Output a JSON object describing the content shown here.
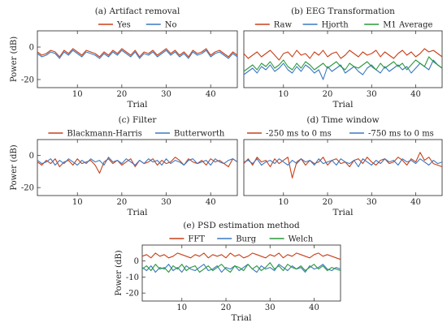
{
  "colors": {
    "red": "#c8401a",
    "blue": "#3a78c2",
    "green": "#2a9a3a"
  },
  "chart_data": [
    {
      "type": "line",
      "title": "(a) Artifact removal",
      "xlabel": "Trial",
      "ylabel": "Power (dB)",
      "xlim": [
        1,
        46
      ],
      "ylim": [
        -25,
        10
      ],
      "xticks": [
        10,
        20,
        30,
        40
      ],
      "yticks": [
        -20,
        0
      ],
      "legend": "top",
      "series": [
        {
          "name": "Yes",
          "color": "#c8401a",
          "values": [
            -3,
            -5,
            -4,
            -2,
            -3,
            -6,
            -2,
            -4,
            -1,
            -3,
            -5,
            -2,
            -3,
            -4,
            -6,
            -3,
            -5,
            -2,
            -4,
            -1,
            -3,
            -5,
            -2,
            -6,
            -3,
            -4,
            -2,
            -5,
            -3,
            -1,
            -4,
            -2,
            -5,
            -3,
            -6,
            -2,
            -4,
            -3,
            -1,
            -5,
            -3,
            -2,
            -4,
            -6,
            -3,
            -5
          ]
        },
        {
          "name": "No",
          "color": "#3a78c2",
          "values": [
            -4,
            -6,
            -5,
            -3,
            -4,
            -7,
            -3,
            -5,
            -2,
            -4,
            -6,
            -3,
            -4,
            -5,
            -7,
            -4,
            -6,
            -3,
            -5,
            -2,
            -4,
            -6,
            -3,
            -7,
            -4,
            -5,
            -3,
            -6,
            -4,
            -2,
            -5,
            -3,
            -6,
            -4,
            -7,
            -3,
            -5,
            -4,
            -2,
            -6,
            -4,
            -3,
            -5,
            -7,
            -4,
            -6
          ]
        }
      ]
    },
    {
      "type": "line",
      "title": "(b) EEG Transformation",
      "xlabel": "Trial",
      "ylabel": "",
      "xlim": [
        1,
        46
      ],
      "ylim": [
        -25,
        10
      ],
      "xticks": [
        10,
        20,
        30,
        40
      ],
      "yticks": [],
      "legend": "top",
      "series": [
        {
          "name": "Raw",
          "color": "#c8401a",
          "values": [
            -4,
            -7,
            -5,
            -3,
            -6,
            -4,
            -2,
            -5,
            -8,
            -4,
            -3,
            -6,
            -2,
            -5,
            -4,
            -7,
            -3,
            -5,
            -2,
            -6,
            -4,
            -3,
            -7,
            -5,
            -2,
            -4,
            -6,
            -3,
            -5,
            -4,
            -2,
            -6,
            -3,
            -5,
            -7,
            -4,
            -2,
            -5,
            -3,
            -6,
            -4,
            -1,
            -3,
            -2,
            -4,
            -6
          ]
        },
        {
          "name": "Hjorth",
          "color": "#3a78c2",
          "values": [
            -17,
            -15,
            -13,
            -16,
            -12,
            -14,
            -11,
            -15,
            -13,
            -10,
            -14,
            -16,
            -12,
            -15,
            -11,
            -13,
            -16,
            -14,
            -20,
            -12,
            -15,
            -13,
            -11,
            -16,
            -14,
            -12,
            -15,
            -17,
            -13,
            -11,
            -14,
            -16,
            -12,
            -15,
            -13,
            -11,
            -14,
            -12,
            -16,
            -13,
            -10,
            -12,
            -14,
            -8,
            -11,
            -13
          ]
        },
        {
          "name": "M1 Average",
          "color": "#2a9a3a",
          "values": [
            -15,
            -13,
            -11,
            -14,
            -10,
            -12,
            -9,
            -13,
            -11,
            -8,
            -12,
            -14,
            -10,
            -13,
            -9,
            -11,
            -14,
            -12,
            -10,
            -13,
            -11,
            -9,
            -12,
            -14,
            -10,
            -12,
            -13,
            -11,
            -9,
            -12,
            -14,
            -10,
            -13,
            -11,
            -9,
            -12,
            -10,
            -14,
            -11,
            -8,
            -10,
            -12,
            -6,
            -9,
            -11,
            -13
          ]
        }
      ]
    },
    {
      "type": "line",
      "title": "(c) Filter",
      "xlabel": "Trial",
      "ylabel": "Power (dB)",
      "xlim": [
        1,
        46
      ],
      "ylim": [
        -25,
        10
      ],
      "xticks": [
        10,
        20,
        30,
        40
      ],
      "yticks": [
        -20,
        0
      ],
      "legend": "top",
      "series": [
        {
          "name": "Blackmann-Harris",
          "color": "#c8401a",
          "values": [
            -4,
            -6,
            -3,
            -5,
            -2,
            -7,
            -4,
            -3,
            -6,
            -2,
            -5,
            -4,
            -3,
            -6,
            -11,
            -4,
            -2,
            -5,
            -3,
            -6,
            -4,
            -2,
            -7,
            -3,
            -5,
            -4,
            -2,
            -6,
            -3,
            -5,
            -4,
            -1,
            -3,
            -6,
            -2,
            -4,
            -5,
            -3,
            -6,
            -2,
            -4,
            -3,
            -5,
            -7,
            -2,
            -4
          ]
        },
        {
          "name": "Butterworth",
          "color": "#3a78c2",
          "values": [
            -3,
            -5,
            -4,
            -2,
            -6,
            -3,
            -5,
            -2,
            -4,
            -6,
            -3,
            -5,
            -2,
            -4,
            -3,
            -6,
            -1,
            -4,
            -3,
            -5,
            -2,
            -4,
            -6,
            -3,
            -5,
            -2,
            -4,
            -3,
            -6,
            -2,
            -5,
            -3,
            -4,
            -6,
            -3,
            -2,
            -5,
            -4,
            -3,
            -6,
            -2,
            -4,
            -5,
            -3,
            -2,
            -4
          ]
        }
      ]
    },
    {
      "type": "line",
      "title": "(d) Time window",
      "xlabel": "Trial",
      "ylabel": "",
      "xlim": [
        1,
        46
      ],
      "ylim": [
        -25,
        10
      ],
      "xticks": [
        10,
        20,
        30,
        40
      ],
      "yticks": [],
      "legend": "top",
      "series": [
        {
          "name": "-250 ms to 0 ms",
          "color": "#c8401a",
          "values": [
            -5,
            -2,
            -6,
            -1,
            -4,
            -3,
            -7,
            -2,
            -5,
            -3,
            -1,
            -14,
            -4,
            -2,
            -6,
            -3,
            -5,
            -4,
            -1,
            -6,
            -3,
            -2,
            -5,
            -4,
            -7,
            -3,
            -2,
            -5,
            -1,
            -4,
            -6,
            -3,
            -2,
            -5,
            -4,
            -1,
            -3,
            -6,
            -2,
            -4,
            2,
            -3,
            -1,
            -5,
            -6,
            -7
          ]
        },
        {
          "name": "-750 ms to 0 ms",
          "color": "#3a78c2",
          "values": [
            -4,
            -3,
            -5,
            -2,
            -6,
            -4,
            -3,
            -5,
            -2,
            -4,
            -6,
            -3,
            -5,
            -2,
            -4,
            -3,
            -6,
            -2,
            -5,
            -4,
            -3,
            -6,
            -2,
            -4,
            -5,
            -3,
            -7,
            -2,
            -4,
            -6,
            -3,
            -5,
            -2,
            -4,
            -3,
            -6,
            -2,
            -4,
            -3,
            -5,
            -2,
            -4,
            -6,
            -3,
            -5,
            -4
          ]
        }
      ]
    },
    {
      "type": "line",
      "title": "(e) PSD estimation method",
      "xlabel": "Trial",
      "ylabel": "Power (dB)",
      "xlim": [
        1,
        46
      ],
      "ylim": [
        -25,
        10
      ],
      "xticks": [
        10,
        20,
        30,
        40
      ],
      "yticks": [
        -20,
        -10,
        0
      ],
      "legend": "top",
      "series": [
        {
          "name": "FFT",
          "color": "#c8401a",
          "values": [
            3,
            4,
            2,
            5,
            3,
            4,
            2,
            3,
            5,
            4,
            3,
            2,
            4,
            3,
            5,
            2,
            4,
            3,
            4,
            2,
            5,
            3,
            4,
            2,
            3,
            5,
            4,
            3,
            2,
            4,
            3,
            5,
            2,
            4,
            3,
            5,
            4,
            3,
            2,
            4,
            5,
            3,
            4,
            3,
            2,
            1
          ]
        },
        {
          "name": "Burg",
          "color": "#3a78c2",
          "values": [
            -4,
            -6,
            -3,
            -7,
            -4,
            -5,
            -2,
            -6,
            -4,
            -7,
            -3,
            -5,
            -6,
            -4,
            -2,
            -6,
            -5,
            -3,
            -7,
            -4,
            -5,
            -3,
            -6,
            -4,
            -2,
            -5,
            -7,
            -3,
            -5,
            -4,
            -6,
            -2,
            -4,
            -6,
            -3,
            -5,
            -4,
            -7,
            -3,
            -5,
            -4,
            -2,
            -5,
            -6,
            -4,
            -5
          ]
        },
        {
          "name": "Welch",
          "color": "#2a9a3a",
          "values": [
            -5,
            -3,
            -6,
            -2,
            -5,
            -4,
            -7,
            -3,
            -5,
            -2,
            -6,
            -4,
            -3,
            -7,
            -5,
            -3,
            -6,
            -4,
            -2,
            -5,
            -7,
            -3,
            -4,
            -6,
            -2,
            -5,
            -3,
            -6,
            -4,
            -1,
            -5,
            -3,
            -6,
            -2,
            -4,
            -5,
            -3,
            -6,
            -4,
            -2,
            -5,
            -3,
            -6,
            -4,
            -5,
            -6
          ]
        }
      ]
    }
  ]
}
